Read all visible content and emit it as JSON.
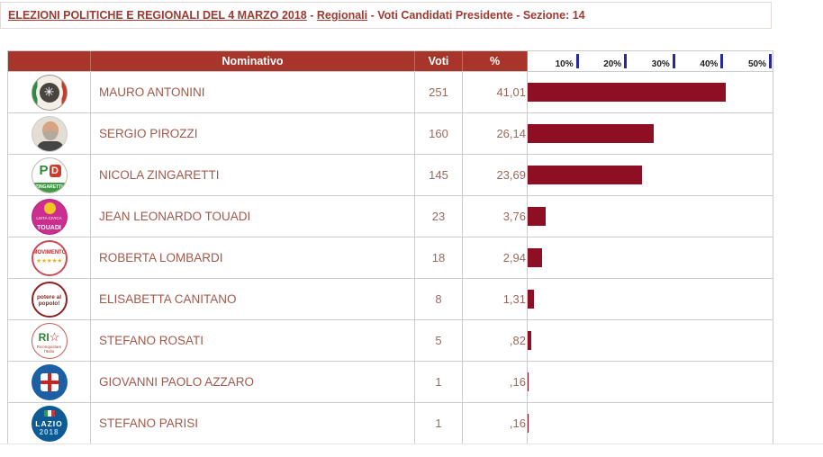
{
  "breadcrumb": {
    "link1": "ELEZIONI POLITICHE E REGIONALI DEL 4 MARZO 2018",
    "sep1": " - ",
    "link2": "Regionali",
    "tail": " - Voti Candidati Presidente - Sezione: 14"
  },
  "table": {
    "headers": {
      "nominativo": "Nominativo",
      "voti": "Voti",
      "pct": "%"
    },
    "scale_labels": [
      "10%",
      "20%",
      "30%",
      "40%",
      "50%"
    ],
    "rows": [
      {
        "name": "MAURO ANTONINI",
        "voti": "251",
        "pct": "41,01",
        "pct_value": 41.01,
        "logo": "casapound-logo"
      },
      {
        "name": "SERGIO PIROZZI",
        "voti": "160",
        "pct": "26,14",
        "pct_value": 26.14,
        "logo": "pirozzi-photo"
      },
      {
        "name": "NICOLA ZINGARETTI",
        "voti": "145",
        "pct": "23,69",
        "pct_value": 23.69,
        "logo": "pd-logo"
      },
      {
        "name": "JEAN LEONARDO TOUADI",
        "voti": "23",
        "pct": "3,76",
        "pct_value": 3.76,
        "logo": "touadi-logo"
      },
      {
        "name": "ROBERTA LOMBARDI",
        "voti": "18",
        "pct": "2,94",
        "pct_value": 2.94,
        "logo": "m5s-logo"
      },
      {
        "name": "ELISABETTA CANITANO",
        "voti": "8",
        "pct": "1,31",
        "pct_value": 1.31,
        "logo": "potere-al-popolo-logo"
      },
      {
        "name": "STEFANO ROSATI",
        "voti": "5",
        "pct": ",82",
        "pct_value": 0.82,
        "logo": "riconquistare-italia-logo"
      },
      {
        "name": "GIOVANNI PAOLO AZZARO",
        "voti": "1",
        "pct": ",16",
        "pct_value": 0.16,
        "logo": "democrazia-cristiana-logo"
      },
      {
        "name": "STEFANO PARISI",
        "voti": "1",
        "pct": ",16",
        "pct_value": 0.16,
        "logo": "lazio-2018-logo"
      }
    ]
  },
  "logos": {
    "casapound-logo": {
      "glyph": "✳"
    },
    "pirozzi-photo": {},
    "pd-logo": {
      "p": "P",
      "d": "D",
      "band": "ZINGARETTI"
    },
    "touadi-logo": {
      "mid": "LISTA CIVICA",
      "label": "TOUADI"
    },
    "m5s-logo": {
      "title": "MOVIMENTO",
      "stars": "★★★★★"
    },
    "potere-al-popolo-logo": {
      "label": "potere al popolo!"
    },
    "riconquistare-italia-logo": {
      "letters": "RI",
      "star": "☆",
      "sub": "Riconquistare l'Italia"
    },
    "democrazia-cristiana-logo": {},
    "lazio-2018-logo": {
      "line1": "LAZIO",
      "line2": "2018"
    }
  },
  "chart_data": {
    "type": "bar",
    "orientation": "horizontal",
    "categories": [
      "MAURO ANTONINI",
      "SERGIO PIROZZI",
      "NICOLA ZINGARETTI",
      "JEAN LEONARDO TOUADI",
      "ROBERTA LOMBARDI",
      "ELISABETTA CANITANO",
      "STEFANO ROSATI",
      "GIOVANNI PAOLO AZZARO",
      "STEFANO PARISI"
    ],
    "values": [
      41.01,
      26.14,
      23.69,
      3.76,
      2.94,
      1.31,
      0.82,
      0.16,
      0.16
    ],
    "votes": [
      251,
      160,
      145,
      23,
      18,
      8,
      5,
      1,
      1
    ],
    "title": "",
    "xlabel": "%",
    "ylabel": "",
    "xlim": [
      0,
      50
    ],
    "tick_labels": [
      "10%",
      "20%",
      "30%",
      "40%",
      "50%"
    ],
    "grid": false,
    "legend": false
  },
  "colors": {
    "header_bg": "#a8352a",
    "bar": "#8e0f23",
    "tick": "#28289a",
    "name_text": "#a2594b",
    "value_text": "#9a695d",
    "crumb_text": "#9e3a31",
    "border": "#cccccc"
  }
}
